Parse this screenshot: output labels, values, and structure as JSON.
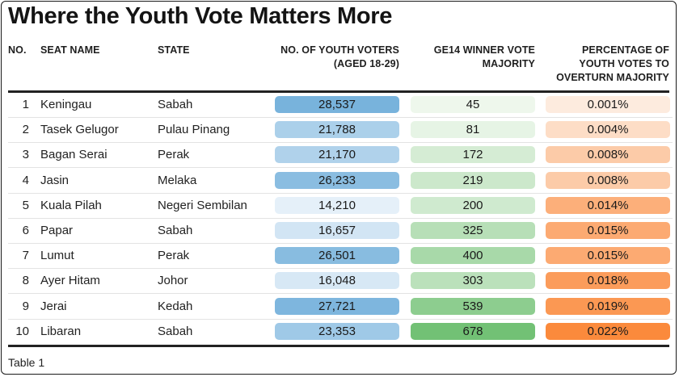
{
  "title": "Where the Youth Vote Matters More",
  "headers": {
    "no": "NO.",
    "seat": "SEAT NAME",
    "state": "STATE",
    "youth_l1": "NO. OF YOUTH VOTERS",
    "youth_l2": "(AGED 18-29)",
    "maj_l1": "GE14 WINNER VOTE",
    "maj_l2": "MAJORITY",
    "pct_l1": "PERCENTAGE OF",
    "pct_l2": "YOUTH VOTES TO",
    "pct_l3": "OVERTURN MAJORITY"
  },
  "chart_data": {
    "type": "table",
    "title": "Where the Youth Vote Matters More",
    "columns": [
      "NO.",
      "SEAT NAME",
      "STATE",
      "NO. OF YOUTH VOTERS (AGED 18-29)",
      "GE14 WINNER VOTE MAJORITY",
      "PERCENTAGE OF YOUTH VOTES TO OVERTURN MAJORITY"
    ],
    "rows": [
      {
        "no": "1",
        "seat": "Keningau",
        "state": "Sabah",
        "youth": "28,537",
        "youth_value": 28537,
        "majority": "45",
        "majority_value": 45,
        "pct": "0.001%",
        "pct_value": 0.001
      },
      {
        "no": "2",
        "seat": "Tasek Gelugor",
        "state": "Pulau Pinang",
        "youth": "21,788",
        "youth_value": 21788,
        "majority": "81",
        "majority_value": 81,
        "pct": "0.004%",
        "pct_value": 0.004
      },
      {
        "no": "3",
        "seat": "Bagan Serai",
        "state": "Perak",
        "youth": "21,170",
        "youth_value": 21170,
        "majority": "172",
        "majority_value": 172,
        "pct": "0.008%",
        "pct_value": 0.008
      },
      {
        "no": "4",
        "seat": "Jasin",
        "state": "Melaka",
        "youth": "26,233",
        "youth_value": 26233,
        "majority": "219",
        "majority_value": 219,
        "pct": "0.008%",
        "pct_value": 0.008
      },
      {
        "no": "5",
        "seat": "Kuala Pilah",
        "state": "Negeri Sembilan",
        "youth": "14,210",
        "youth_value": 14210,
        "majority": "200",
        "majority_value": 200,
        "pct": "0.014%",
        "pct_value": 0.014
      },
      {
        "no": "6",
        "seat": "Papar",
        "state": "Sabah",
        "youth": "16,657",
        "youth_value": 16657,
        "majority": "325",
        "majority_value": 325,
        "pct": "0.015%",
        "pct_value": 0.015
      },
      {
        "no": "7",
        "seat": "Lumut",
        "state": "Perak",
        "youth": "26,501",
        "youth_value": 26501,
        "majority": "400",
        "majority_value": 400,
        "pct": "0.015%",
        "pct_value": 0.015
      },
      {
        "no": "8",
        "seat": "Ayer Hitam",
        "state": "Johor",
        "youth": "16,048",
        "youth_value": 16048,
        "majority": "303",
        "majority_value": 303,
        "pct": "0.018%",
        "pct_value": 0.018
      },
      {
        "no": "9",
        "seat": "Jerai",
        "state": "Kedah",
        "youth": "27,721",
        "youth_value": 27721,
        "majority": "539",
        "majority_value": 539,
        "pct": "0.019%",
        "pct_value": 0.019
      },
      {
        "no": "10",
        "seat": "Libaran",
        "state": "Sabah",
        "youth": "23,353",
        "youth_value": 23353,
        "majority": "678",
        "majority_value": 678,
        "pct": "0.022%",
        "pct_value": 0.022
      }
    ]
  },
  "footer": "Table 1",
  "colors": {
    "youth_low": "#f4f8fd",
    "youth_high": "#78b3dc",
    "maj_low": "#f4faf2",
    "maj_high": "#72c175",
    "pct_low": "#fdf0e6",
    "pct_high": "#fb8a3c",
    "rule": "#222222"
  }
}
